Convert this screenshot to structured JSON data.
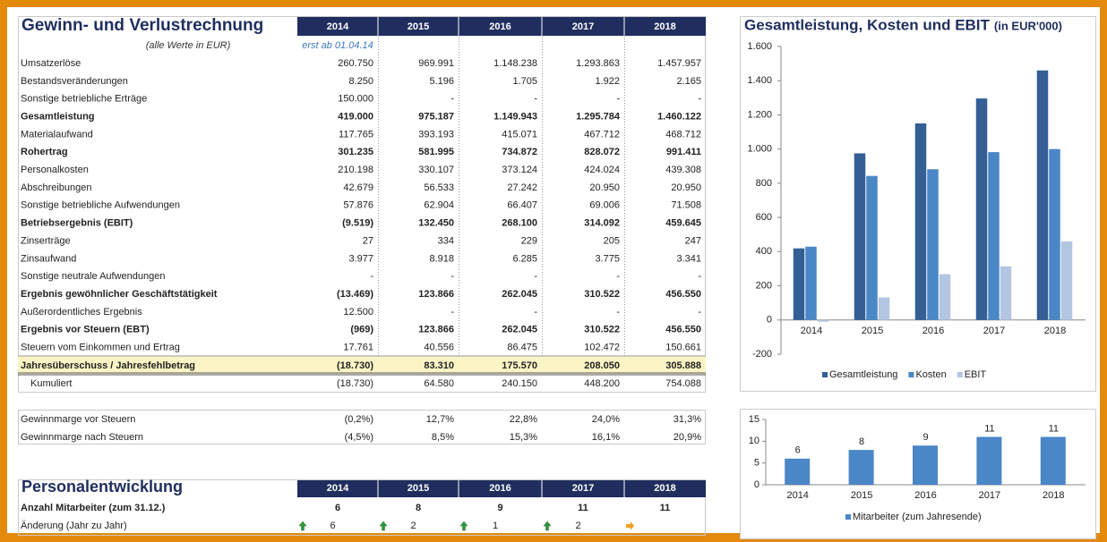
{
  "gv": {
    "title": "Gewinn- und Verlustrechnung",
    "years": [
      "2014",
      "2015",
      "2016",
      "2017",
      "2018"
    ],
    "note": "(alle Werte in EUR)",
    "note_2014": "erst ab 01.04.14",
    "rows": [
      {
        "label": "Umsatzerlöse",
        "values": [
          "260.750",
          "969.991",
          "1.148.238",
          "1.293.863",
          "1.457.957"
        ]
      },
      {
        "label": "Bestandsveränderungen",
        "values": [
          "8.250",
          "5.196",
          "1.705",
          "1.922",
          "2.165"
        ]
      },
      {
        "label": "Sonstige betriebliche Erträge",
        "values": [
          "150.000",
          "-",
          "-",
          "-",
          "-"
        ]
      },
      {
        "label": "Gesamtleistung",
        "values": [
          "419.000",
          "975.187",
          "1.149.943",
          "1.295.784",
          "1.460.122"
        ],
        "bold": true
      },
      {
        "label": "Materialaufwand",
        "values": [
          "117.765",
          "393.193",
          "415.071",
          "467.712",
          "468.712"
        ]
      },
      {
        "label": "Rohertrag",
        "values": [
          "301.235",
          "581.995",
          "734.872",
          "828.072",
          "991.411"
        ],
        "bold": true
      },
      {
        "label": "Personalkosten",
        "values": [
          "210.198",
          "330.107",
          "373.124",
          "424.024",
          "439.308"
        ]
      },
      {
        "label": "Abschreibungen",
        "values": [
          "42.679",
          "56.533",
          "27.242",
          "20.950",
          "20.950"
        ]
      },
      {
        "label": "Sonstige betriebliche Aufwendungen",
        "values": [
          "57.876",
          "62.904",
          "66.407",
          "69.006",
          "71.508"
        ]
      },
      {
        "label": "Betriebsergebnis (EBIT)",
        "values": [
          "(9.519)",
          "132.450",
          "268.100",
          "314.092",
          "459.645"
        ],
        "bold": true
      },
      {
        "label": "Zinserträge",
        "values": [
          "27",
          "334",
          "229",
          "205",
          "247"
        ]
      },
      {
        "label": "Zinsaufwand",
        "values": [
          "3.977",
          "8.918",
          "6.285",
          "3.775",
          "3.341"
        ]
      },
      {
        "label": "Sonstige neutrale Aufwendungen",
        "values": [
          "-",
          "-",
          "-",
          "-",
          "-"
        ]
      },
      {
        "label": "Ergebnis gewöhnlicher Geschäftstätigkeit",
        "values": [
          "(13.469)",
          "123.866",
          "262.045",
          "310.522",
          "456.550"
        ],
        "bold": true
      },
      {
        "label": "Außerordentliches Ergebnis",
        "values": [
          "12.500",
          "-",
          "-",
          "-",
          "-"
        ]
      },
      {
        "label": "Ergebnis vor Steuern (EBT)",
        "values": [
          "(969)",
          "123.866",
          "262.045",
          "310.522",
          "456.550"
        ],
        "bold": true
      },
      {
        "label": "Steuern vom Einkommen und Ertrag",
        "values": [
          "17.761",
          "40.556",
          "86.475",
          "102.472",
          "150.661"
        ]
      }
    ],
    "total": {
      "label": "Jahresüberschuss / Jahresfehlbetrag",
      "values": [
        "(18.730)",
        "83.310",
        "175.570",
        "208.050",
        "305.888"
      ]
    },
    "cumulative": {
      "label": "Kumuliert",
      "values": [
        "(18.730)",
        "64.580",
        "240.150",
        "448.200",
        "754.088"
      ]
    }
  },
  "margins": {
    "rows": [
      {
        "label": "Gewinnmarge vor Steuern",
        "values": [
          "(0,2%)",
          "12,7%",
          "22,8%",
          "24,0%",
          "31,3%"
        ]
      },
      {
        "label": "Gewinnmarge nach Steuern",
        "values": [
          "(4,5%)",
          "8,5%",
          "15,3%",
          "16,1%",
          "20,9%"
        ]
      }
    ]
  },
  "personal": {
    "title": "Personalentwicklung",
    "years": [
      "2014",
      "2015",
      "2016",
      "2017",
      "2018"
    ],
    "rows": [
      {
        "label": "Anzahl Mitarbeiter (zum 31.12.)",
        "values": [
          "6",
          "8",
          "9",
          "11",
          "11"
        ],
        "bold": true
      },
      {
        "label": "Änderung (Jahr zu Jahr)",
        "values": [
          "6",
          "2",
          "1",
          "2",
          null
        ]
      }
    ]
  },
  "chart_data": [
    {
      "type": "bar",
      "title": "Gesamtleistung, Kosten und EBIT",
      "subtitle": "(in EUR'000)",
      "categories": [
        "2014",
        "2015",
        "2016",
        "2017",
        "2018"
      ],
      "series": [
        {
          "name": "Gesamtleistung",
          "color": "#335f95",
          "values": [
            419,
            975,
            1150,
            1296,
            1460
          ]
        },
        {
          "name": "Kosten",
          "color": "#4a87c6",
          "values": [
            429,
            843,
            882,
            982,
            1000
          ]
        },
        {
          "name": "EBIT",
          "color": "#b3c6e1",
          "values": [
            -10,
            132,
            268,
            314,
            460
          ]
        }
      ],
      "ylim": [
        -200,
        1600
      ],
      "yticks": [
        -200,
        0,
        200,
        400,
        600,
        800,
        {
          "value": 1000,
          "label": "1.000"
        },
        {
          "value": 1200,
          "label": "1.200"
        },
        {
          "value": 1400,
          "label": "1.400"
        },
        {
          "value": 1600,
          "label": "1.600"
        }
      ],
      "legend": "bottom"
    },
    {
      "type": "bar",
      "categories": [
        "2014",
        "2015",
        "2016",
        "2017",
        "2018"
      ],
      "series": [
        {
          "name": "Mitarbeiter (zum Jahresende)",
          "color": "#4a87c6",
          "values": [
            6,
            8,
            9,
            11,
            11
          ]
        }
      ],
      "ylim": [
        0,
        15
      ],
      "yticks": [
        0,
        5,
        10,
        15
      ],
      "data_labels": true,
      "legend": "bottom"
    }
  ]
}
